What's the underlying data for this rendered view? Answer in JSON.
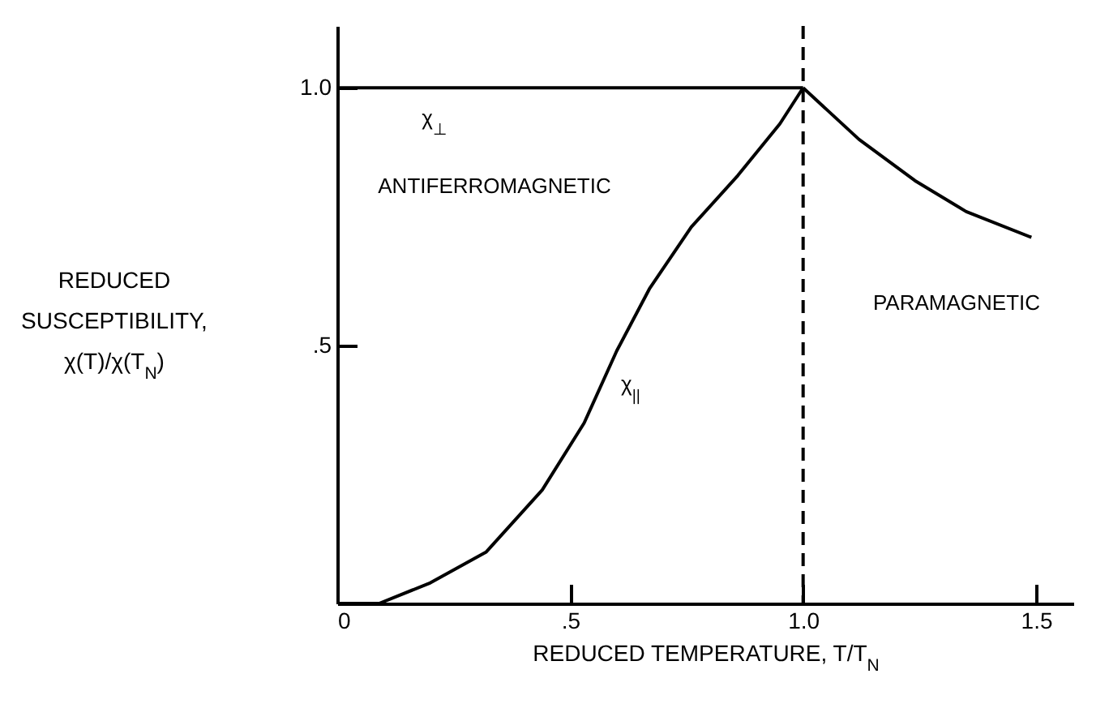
{
  "chart_data": {
    "type": "line",
    "xlabel": "REDUCED TEMPERATURE, T/T$_{N}$",
    "ylabel": "REDUCED SUSCEPTIBILITY, χ(T)/χ(T$_{N}$)",
    "xlim": [
      0,
      1.58
    ],
    "ylim": [
      0,
      1.12
    ],
    "xticks": [
      0,
      {
        "value": 0.5,
        "label": ".5"
      },
      {
        "value": 1,
        "label": "1.0"
      },
      {
        "value": 1.5,
        "label": "1.5"
      }
    ],
    "yticks": [
      {
        "value": 0.5,
        "label": ".5"
      },
      {
        "value": 1,
        "label": "1.0"
      }
    ],
    "grid": false,
    "marker": "none",
    "line_style": "solid",
    "series": [
      {
        "color": "#000000",
        "x": [
          0,
          1
        ],
        "values": [
          1,
          1
        ]
      },
      {
        "color": "#000000",
        "x": [
          0,
          0.09,
          0.2,
          0.32,
          0.44,
          0.53,
          0.6,
          0.67,
          0.76,
          0.86,
          0.95,
          1
        ],
        "values": [
          0,
          0,
          0.04,
          0.1,
          0.22,
          0.35,
          0.49,
          0.61,
          0.73,
          0.83,
          0.93,
          1
        ]
      },
      {
        "color": "#000000",
        "x": [
          1,
          1.12,
          1.24,
          1.35,
          1.49
        ],
        "values": [
          1,
          0.9,
          0.82,
          0.76,
          0.71
        ]
      }
    ],
    "ref_lines": [
      {
        "axis": "x",
        "value": 1,
        "line_style": "dashed",
        "color": "#000000"
      }
    ],
    "annotations": [
      "χ$_{⊥}$",
      "ANTIFERROMAGNETIC",
      "χ$_{||}$",
      "PARAMAGNETIC"
    ]
  }
}
